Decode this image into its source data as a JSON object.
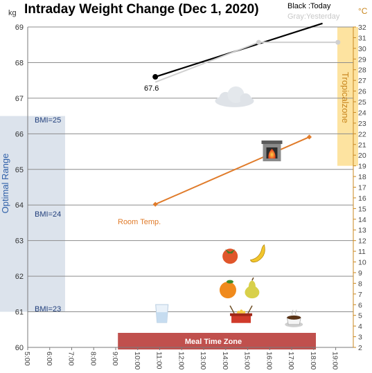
{
  "chart_data": {
    "type": "line",
    "title": "Intraday Weight Change (Dec 1, 2020)",
    "legend": {
      "today_label": "Black :Today",
      "yesterday_label": "Gray:Yesterday",
      "placement": "top-right"
    },
    "x_axis": {
      "ticks": [
        "5:00",
        "6:00",
        "7:00",
        "8:00",
        "9:00",
        "10:00",
        "11:00",
        "12:00",
        "13:00",
        "14:00",
        "15:00",
        "16:00",
        "17:00",
        "18:00",
        "19:00"
      ],
      "range_hours": [
        5,
        19.8
      ]
    },
    "y_left": {
      "unit": "kg",
      "ticks": [
        60,
        61,
        62,
        63,
        64,
        65,
        66,
        67,
        68,
        69
      ],
      "range": [
        60,
        69
      ]
    },
    "y_right": {
      "unit": "°C",
      "ticks": [
        2,
        3,
        4,
        5,
        6,
        7,
        8,
        9,
        10,
        11,
        12,
        13,
        14,
        15,
        16,
        17,
        18,
        19,
        20,
        21,
        22,
        23,
        24,
        25,
        26,
        27,
        28,
        29,
        30,
        31,
        32
      ],
      "range": [
        2,
        32
      ]
    },
    "series": [
      {
        "key": "today",
        "axis": "left",
        "color": "#000000",
        "points": [
          {
            "x": 10.8,
            "y": 67.6
          },
          {
            "x": 18.4,
            "y": 69.1
          }
        ],
        "label": "67.6"
      },
      {
        "key": "yesterday",
        "axis": "left",
        "color": "#d0d0d0",
        "points": [
          {
            "x": 10.8,
            "y": 67.45
          },
          {
            "x": 15.5,
            "y": 68.57
          },
          {
            "x": 19.1,
            "y": 68.57
          }
        ]
      },
      {
        "key": "room_temp",
        "axis": "right",
        "color": "#e07b2a",
        "points": [
          {
            "x": 10.8,
            "y": 15.4
          },
          {
            "x": 17.8,
            "y": 21.7
          }
        ],
        "label": "Room Temp."
      }
    ],
    "bands": {
      "optimal_range": {
        "label": "Optimal Range",
        "y_from": 61,
        "y_to": 66.5,
        "color": "#dce3ec"
      },
      "bmi_labels": [
        {
          "text": "BMI=25",
          "y": 66.3
        },
        {
          "text": "BMI=24",
          "y": 63.8
        },
        {
          "text": "BMI=23",
          "y": 61.1
        }
      ],
      "tropical_zone": {
        "label": "Tropicalzone",
        "temp_from": 19,
        "temp_to": 32,
        "color": "#fde3a0"
      },
      "meal_time": {
        "label": "Meal Time Zone",
        "x_from": 9.1,
        "x_to": 18.1,
        "color": "#c0504d"
      }
    },
    "icons": [
      {
        "name": "cloud-icon",
        "x": 14.4,
        "y": 67.0
      },
      {
        "name": "fireplace-icon",
        "x": 16.1,
        "y": 65.5
      },
      {
        "name": "persimmon-icon",
        "x": 14.2,
        "y": 62.6
      },
      {
        "name": "banana-icon",
        "x": 15.5,
        "y": 62.65
      },
      {
        "name": "orange-icon",
        "x": 14.1,
        "y": 61.65
      },
      {
        "name": "pear-icon",
        "x": 15.2,
        "y": 61.65
      },
      {
        "name": "water-glass-icon",
        "x": 11.1,
        "y": 60.95
      },
      {
        "name": "hotpot-icon",
        "x": 14.7,
        "y": 60.9
      },
      {
        "name": "coffee-cup-icon",
        "x": 17.1,
        "y": 60.8
      }
    ],
    "grid": true
  }
}
